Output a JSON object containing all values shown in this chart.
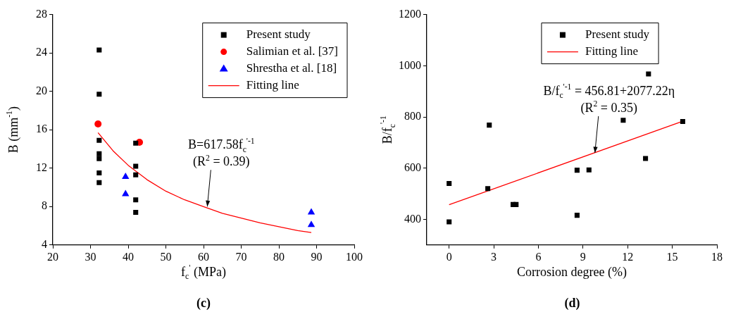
{
  "chart_data": [
    {
      "type": "scatter",
      "xlabel": "f$_{c}$$^{'}$ (MPa)",
      "ylabel": "B (mm$^{-1}$)",
      "xlim": [
        20,
        100
      ],
      "ylim": [
        4,
        28
      ],
      "xticks": [
        20,
        30,
        40,
        50,
        60,
        70,
        80,
        90,
        100
      ],
      "yticks": [
        4,
        8,
        12,
        16,
        20,
        24,
        28
      ],
      "grid": false,
      "legend": "top right",
      "series": [
        {
          "name": "Present study",
          "type": "scatter",
          "marker": "square",
          "color": "#000000",
          "x": [
            32.3,
            32.3,
            32.3,
            32.3,
            32.3,
            32.3,
            32.3,
            42,
            42,
            42,
            42,
            42
          ],
          "values": [
            24.3,
            19.7,
            14.9,
            13.5,
            13.0,
            11.5,
            10.5,
            14.6,
            12.2,
            11.3,
            8.7,
            7.4
          ]
        },
        {
          "name": "Salimian et al. [37]",
          "type": "scatter",
          "marker": "circle",
          "color": "#ff0000",
          "x": [
            32,
            43
          ],
          "values": [
            16.6,
            14.7
          ]
        },
        {
          "name": "Shrestha et al. [18]",
          "type": "scatter",
          "marker": "triangle",
          "color": "#0000ff",
          "x": [
            39.3,
            39.3,
            88.6,
            88.6
          ],
          "values": [
            11.1,
            9.3,
            7.4,
            6.1
          ]
        },
        {
          "name": "Fitting line",
          "type": "line",
          "marker": "none",
          "line_style": "solid",
          "color": "#ff0000",
          "x": [
            32,
            36,
            40,
            45,
            50,
            55,
            60,
            65,
            70,
            75,
            80,
            85,
            88.6
          ],
          "values": [
            15.7,
            13.8,
            12.3,
            10.8,
            9.6,
            8.7,
            8.0,
            7.3,
            6.8,
            6.3,
            5.9,
            5.5,
            5.3
          ]
        }
      ],
      "title": "(c)",
      "annotations": [
        "B=617.58f$_{c}$$^{'-1}$",
        {
          "text": "(R$^{2}$ = 0.39)",
          "x": 61,
          "y": 8.0
        }
      ]
    },
    {
      "type": "scatter",
      "xlabel": "Corrosion degree (%)",
      "ylabel": "B/f$_{c}$$^{'-1}$",
      "xlim": [
        -1.5,
        18
      ],
      "ylim": [
        300,
        1200
      ],
      "xticks": [
        0,
        3,
        6,
        9,
        12,
        15,
        18
      ],
      "yticks": [
        400,
        600,
        800,
        1000,
        1200
      ],
      "grid": false,
      "legend": "top",
      "series": [
        {
          "name": "Present study",
          "type": "scatter",
          "marker": "square",
          "color": "#000000",
          "x": [
            0,
            0,
            2.6,
            2.7,
            4.3,
            4.5,
            8.6,
            8.6,
            9.4,
            11.7,
            13.2,
            13.4,
            15.7
          ],
          "values": [
            540,
            390,
            520,
            768,
            458,
            458,
            592,
            416,
            593,
            787,
            638,
            968,
            782
          ]
        },
        {
          "name": "Fitting line",
          "type": "line",
          "marker": "none",
          "line_style": "solid",
          "color": "#ff0000",
          "x": [
            0,
            15.7
          ],
          "values": [
            457,
            783
          ]
        }
      ],
      "title": "(d)",
      "annotations": [
        "B/f$_{c}$$^{'-1}$ = 456.81+2077.22η",
        {
          "text": "(R$^{2}$ = 0.35)",
          "x": 9.8,
          "y": 660
        }
      ]
    }
  ]
}
